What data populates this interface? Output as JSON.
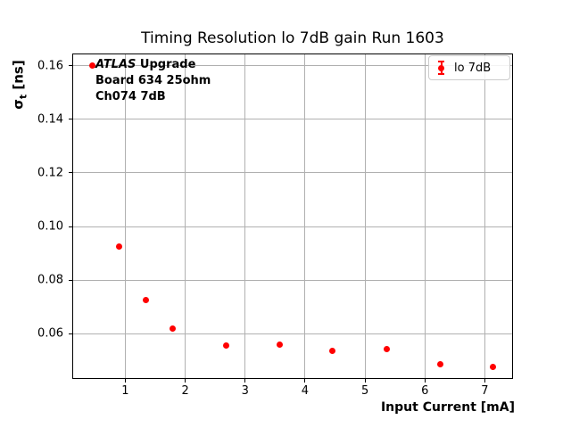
{
  "chart_data": {
    "type": "scatter",
    "title": "Timing Resolution lo 7dB gain Run 1603",
    "xlabel": "Input Current [mA]",
    "ylabel": "σt [ns]",
    "ylabel_parts": {
      "sigma": "σ",
      "subscript": "t",
      "units": " [ns]"
    },
    "xlim": [
      0.115,
      7.47
    ],
    "ylim": [
      0.0432,
      0.1645
    ],
    "xticks": [
      1,
      2,
      3,
      4,
      5,
      6,
      7
    ],
    "xtick_labels": [
      "1",
      "2",
      "3",
      "4",
      "5",
      "6",
      "7"
    ],
    "yticks": [
      0.06,
      0.08,
      0.1,
      0.12,
      0.14,
      0.16
    ],
    "ytick_labels": [
      "0.06",
      "0.08",
      "0.10",
      "0.12",
      "0.14",
      "0.16"
    ],
    "grid": true,
    "legend": {
      "label": "lo 7dB",
      "position": "upper right"
    },
    "series": [
      {
        "name": "lo 7dB",
        "color": "#ff0000",
        "marker": "circle-errorbar",
        "x": [
          0.45,
          0.89,
          1.34,
          1.79,
          2.68,
          3.57,
          4.46,
          5.36,
          6.25,
          7.14
        ],
        "y": [
          0.16,
          0.0926,
          0.0726,
          0.0619,
          0.0556,
          0.0559,
          0.0537,
          0.0543,
          0.0488,
          0.0478
        ]
      }
    ],
    "annotation": {
      "line1_italic": "ATLAS",
      "line1_rest": " Upgrade",
      "line2": "Board 634 25ohm",
      "line3": "Ch074 7dB"
    },
    "colors": {
      "series": "#ff0000",
      "grid": "#b0b0b0",
      "spine": "#000000",
      "text": "#000000",
      "legend_border": "#cccccc"
    }
  }
}
